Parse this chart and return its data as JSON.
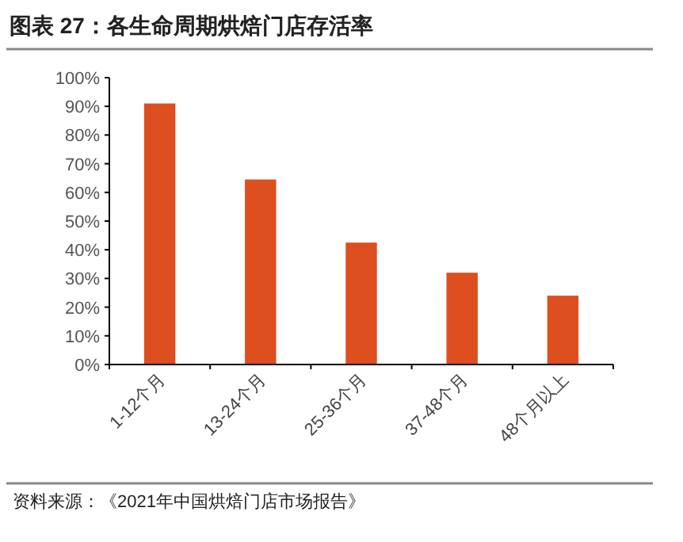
{
  "chart_data": {
    "type": "bar",
    "title": "图表 27：各生命周期烘焙门店存活率",
    "categories": [
      "1-12个月",
      "13-24个月",
      "25-36个月",
      "37-48个月",
      "48个月以上"
    ],
    "values": [
      91,
      64.5,
      42.5,
      32,
      24
    ],
    "color": "#dd4f1f",
    "ylim": [
      0,
      100
    ],
    "yticks": [
      {
        "value": 0,
        "label": "0%"
      },
      {
        "value": 10,
        "label": "10%"
      },
      {
        "value": 20,
        "label": "20%"
      },
      {
        "value": 30,
        "label": "30%"
      },
      {
        "value": 40,
        "label": "40%"
      },
      {
        "value": 50,
        "label": "50%"
      },
      {
        "value": 60,
        "label": "60%"
      },
      {
        "value": 70,
        "label": "70%"
      },
      {
        "value": 80,
        "label": "80%"
      },
      {
        "value": 90,
        "label": "90%"
      },
      {
        "value": 100,
        "label": "100%"
      }
    ],
    "annotations": [
      "资料来源：《2021年中国烘焙门店市场报告》"
    ]
  }
}
